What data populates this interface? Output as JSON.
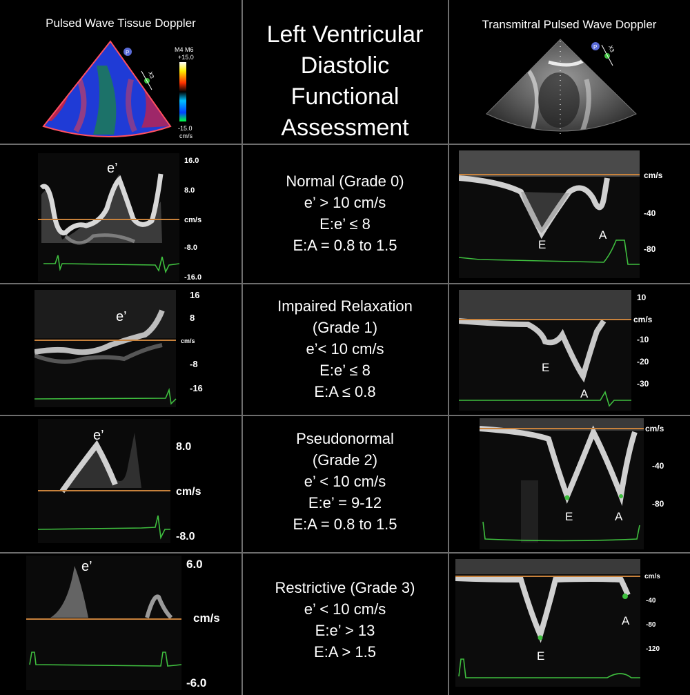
{
  "header": {
    "left": "Pulsed Wave Tissue Doppler",
    "center": [
      "Left Ventricular",
      "Diastolic",
      "Functional",
      "Assessment"
    ],
    "right": "Transmitral Pulsed Wave Doppler"
  },
  "top_images": {
    "left_scale": {
      "mode": "M4 M6",
      "top": "+15.0",
      "bottom": "-15.0",
      "unit": "cm/s",
      "marker": "P",
      "zoom": "X3"
    },
    "right_marker": {
      "marker": "P",
      "zoom": "X3"
    }
  },
  "rows": [
    {
      "lines": [
        "Normal (Grade 0)",
        "e’ > 10 cm/s",
        "E:e’ ≤ 8",
        "E:A = 0.8 to 1.5"
      ],
      "tdi": {
        "peak": "e’",
        "ticks": [
          "16.0",
          "8.0",
          "cm/s",
          "-8.0",
          "-16.0"
        ]
      },
      "mitral": {
        "ticks": [
          "cm/s",
          "-40",
          "-80"
        ],
        "labels": [
          "E",
          "A"
        ]
      }
    },
    {
      "lines": [
        "Impaired Relaxation",
        "(Grade 1)",
        "e’< 10 cm/s",
        "E:e’ ≤ 8",
        "E:A ≤ 0.8"
      ],
      "tdi": {
        "peak": "e’",
        "ticks": [
          "16",
          "8",
          "cm/s",
          "-8",
          "-16"
        ]
      },
      "mitral": {
        "ticks": [
          "10",
          "cm/s",
          "-10",
          "-20",
          "-30"
        ],
        "labels": [
          "E",
          "A"
        ]
      }
    },
    {
      "lines": [
        "Pseudonormal",
        "(Grade 2)",
        "e’ < 10 cm/s",
        "E:e’ = 9-12",
        "E:A = 0.8 to 1.5"
      ],
      "tdi": {
        "peak": "e’",
        "ticks": [
          "8.0",
          "cm/s",
          "-8.0"
        ]
      },
      "mitral": {
        "ticks": [
          "cm/s",
          "-40",
          "-80"
        ],
        "labels": [
          "E",
          "A"
        ]
      }
    },
    {
      "lines": [
        "Restrictive (Grade 3)",
        "e’ < 10 cm/s",
        "E:e’ > 13",
        "E:A > 1.5"
      ],
      "tdi": {
        "peak": "e’",
        "ticks": [
          "6.0",
          "cm/s",
          "-6.0"
        ]
      },
      "mitral": {
        "ticks": [
          "cm/s",
          "-40",
          "-80",
          "-120"
        ],
        "labels": [
          "E",
          "A"
        ]
      }
    }
  ],
  "colors": {
    "baseline": "#c8823c",
    "ecg": "#3fbf3f",
    "divider": "#6e6e6e"
  }
}
